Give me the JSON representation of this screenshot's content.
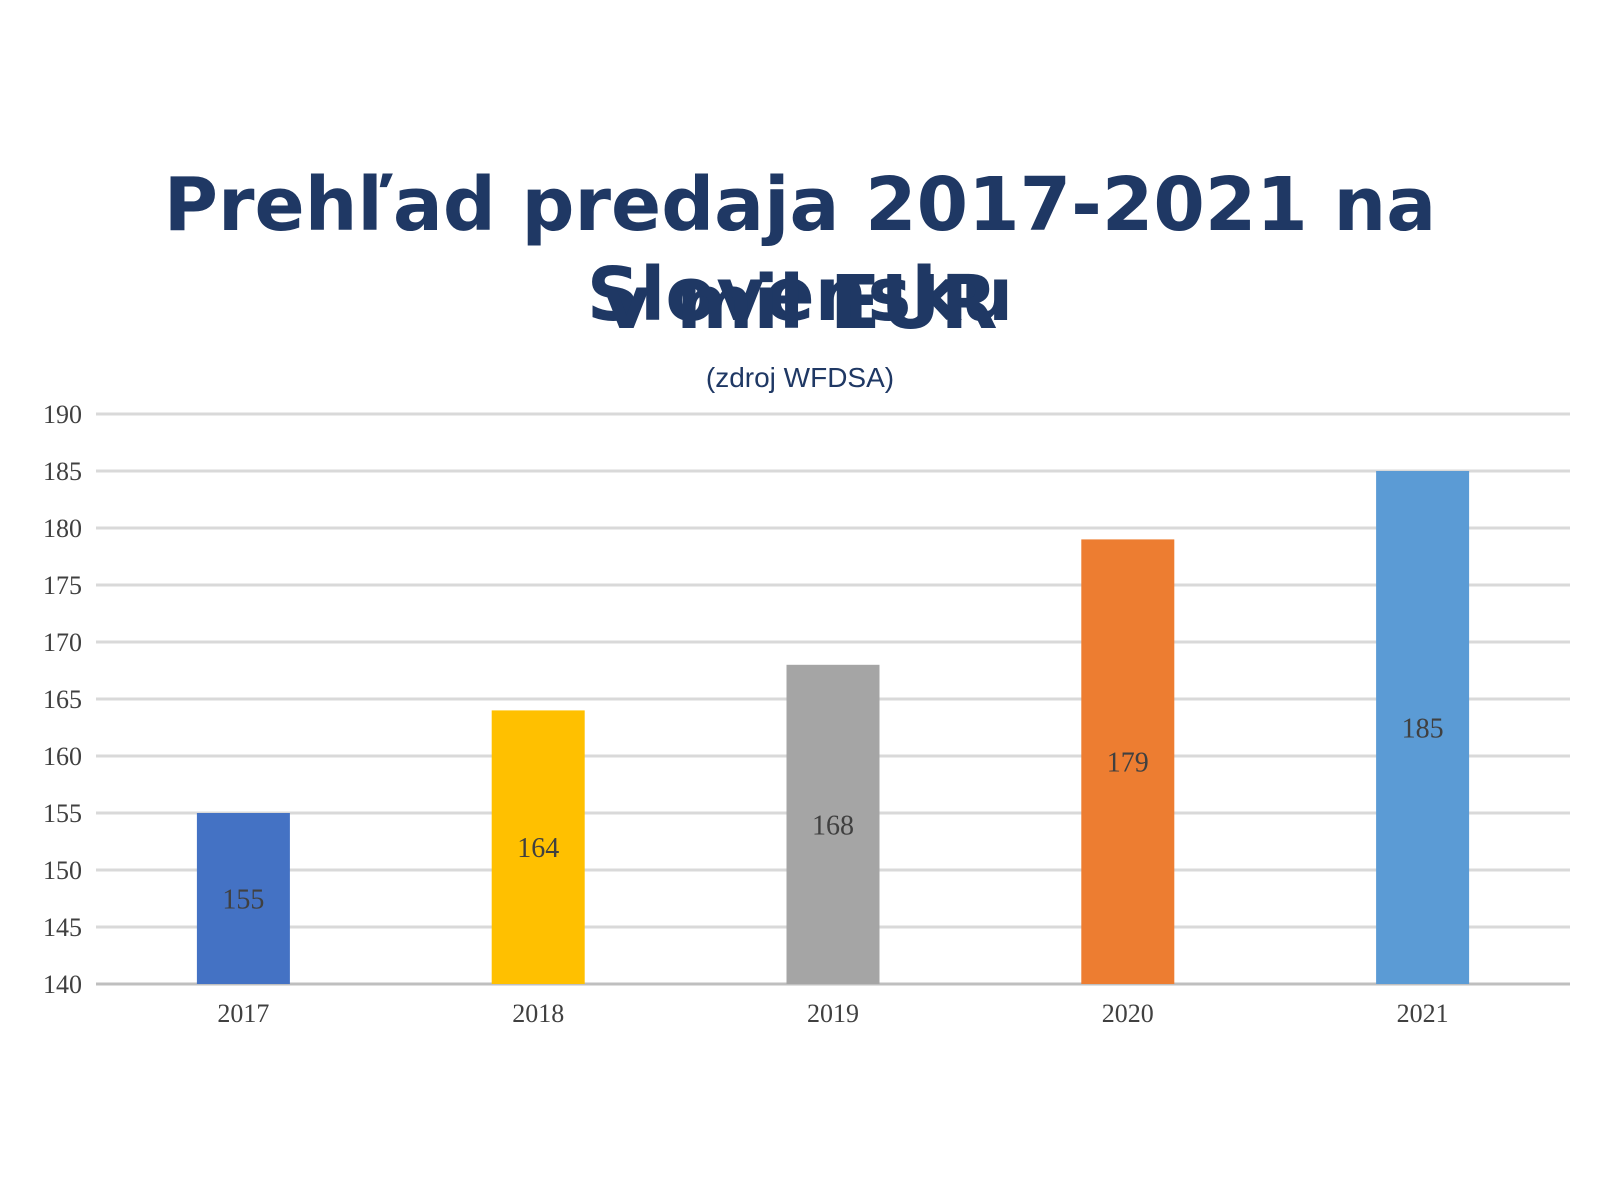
{
  "chart_data": {
    "type": "bar",
    "title_line1": "Prehľad predaja 2017-2021 na Slovensku",
    "title_line2": "v mil EUR",
    "subtitle": "(zdroj WFDSA)",
    "categories": [
      "2017",
      "2018",
      "2019",
      "2020",
      "2021"
    ],
    "values": [
      155,
      164,
      168,
      179,
      185
    ],
    "data_labels": [
      "155",
      "164",
      "168",
      "179",
      "185"
    ],
    "bar_colors": [
      "#4472c4",
      "#ffc000",
      "#a5a5a5",
      "#ed7d31",
      "#5b9bd5"
    ],
    "ylim": [
      140,
      190
    ],
    "yticks": [
      140,
      145,
      150,
      155,
      160,
      165,
      170,
      175,
      180,
      185,
      190
    ],
    "grid": true,
    "legend": "none"
  }
}
